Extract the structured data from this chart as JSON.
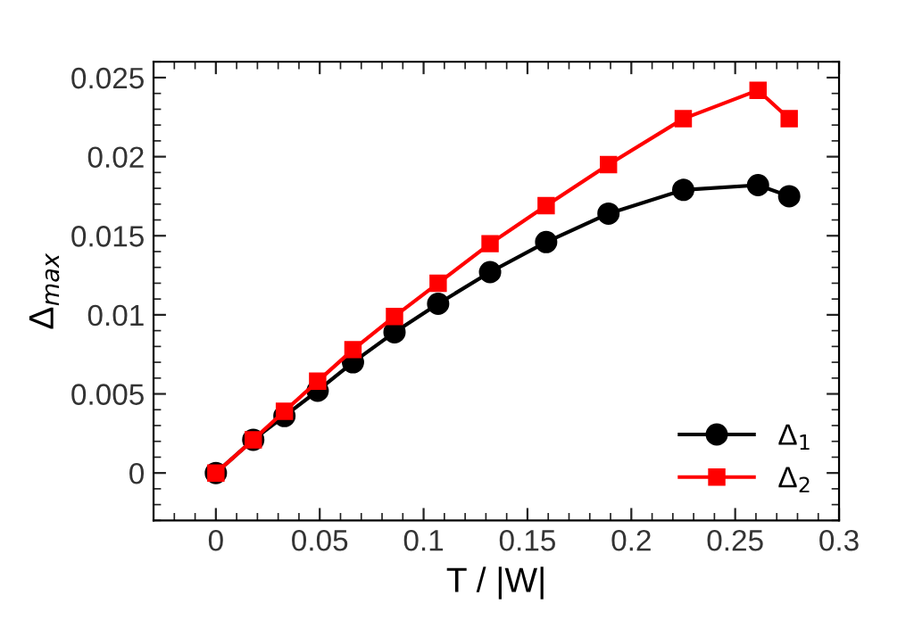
{
  "chart_data": {
    "type": "line",
    "xlabel": "T / |W|",
    "ylabel": "Δ$_{max}$",
    "xlim": [
      -0.03,
      0.3
    ],
    "xticks": [
      0,
      0.05,
      0.1,
      0.15,
      0.2,
      0.25,
      0.3
    ],
    "ylim": [
      -0.003,
      0.026
    ],
    "yticks": [
      0,
      0.005,
      0.01,
      0.015,
      0.02,
      0.025
    ],
    "x": [
      0,
      0.018,
      0.033,
      0.049,
      0.066,
      0.086,
      0.107,
      0.132,
      0.159,
      0.189,
      0.225,
      0.261,
      0.276
    ],
    "series": [
      {
        "name": "Δ$_{1}$",
        "color": "#000000",
        "marker": "circle",
        "values": [
          0,
          0.0021,
          0.0036,
          0.0052,
          0.007,
          0.0089,
          0.0107,
          0.0127,
          0.0146,
          0.0164,
          0.0179,
          0.0182,
          0.0175
        ]
      },
      {
        "name": "Δ$_{2}$",
        "color": "#ff0000",
        "marker": "square",
        "values": [
          0,
          0.0021,
          0.0039,
          0.0058,
          0.0078,
          0.0099,
          0.012,
          0.0145,
          0.0169,
          0.0195,
          0.0224,
          0.0242,
          0.0224
        ]
      }
    ],
    "legend": "bottom right",
    "grid": false
  }
}
